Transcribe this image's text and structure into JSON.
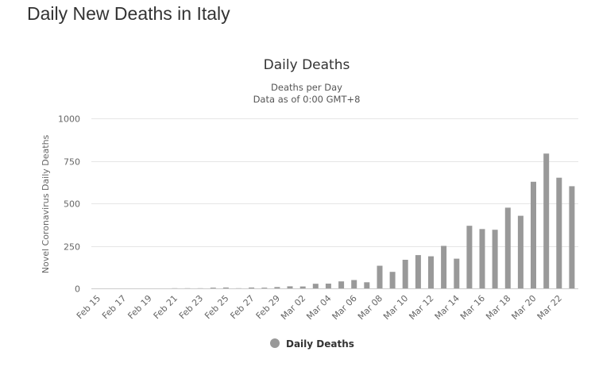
{
  "page": {
    "title": "Daily New Deaths in Italy"
  },
  "chart_data": {
    "type": "bar",
    "title": "Daily Deaths",
    "subtitle_lines": [
      "Deaths per Day",
      "Data as of 0:00 GMT+8"
    ],
    "xlabel": "",
    "ylabel": "Novel Coronavirus Daily Deaths",
    "ylim": [
      0,
      1000
    ],
    "yticks": [
      0,
      250,
      500,
      750,
      1000
    ],
    "grid": true,
    "legend": "bottom-center",
    "bar_color": "#999999",
    "categories": [
      "Feb 15",
      "Feb 16",
      "Feb 17",
      "Feb 18",
      "Feb 19",
      "Feb 20",
      "Feb 21",
      "Feb 22",
      "Feb 23",
      "Feb 24",
      "Feb 25",
      "Feb 26",
      "Feb 27",
      "Feb 28",
      "Feb 29",
      "Mar 01",
      "Mar 02",
      "Mar 03",
      "Mar 04",
      "Mar 05",
      "Mar 06",
      "Mar 07",
      "Mar 08",
      "Mar 09",
      "Mar 10",
      "Mar 11",
      "Mar 12",
      "Mar 13",
      "Mar 14",
      "Mar 15",
      "Mar 16",
      "Mar 17",
      "Mar 18",
      "Mar 19",
      "Mar 20",
      "Mar 21",
      "Mar 22",
      "Mar 23"
    ],
    "tick_labels": [
      "Feb 15",
      "Feb 17",
      "Feb 19",
      "Feb 21",
      "Feb 23",
      "Feb 25",
      "Feb 27",
      "Feb 29",
      "Mar 02",
      "Mar 04",
      "Mar 06",
      "Mar 08",
      "Mar 10",
      "Mar 12",
      "Mar 14",
      "Mar 16",
      "Mar 18",
      "Mar 20",
      "Mar 22"
    ],
    "series": [
      {
        "name": "Daily Deaths",
        "values": [
          0,
          0,
          0,
          0,
          0,
          0,
          1,
          1,
          1,
          4,
          5,
          1,
          5,
          4,
          8,
          12,
          11,
          27,
          28,
          41,
          49,
          36,
          133,
          97,
          168,
          196,
          189,
          250,
          175,
          368,
          349,
          345,
          475,
          427,
          627,
          793,
          651,
          601
        ]
      }
    ]
  }
}
